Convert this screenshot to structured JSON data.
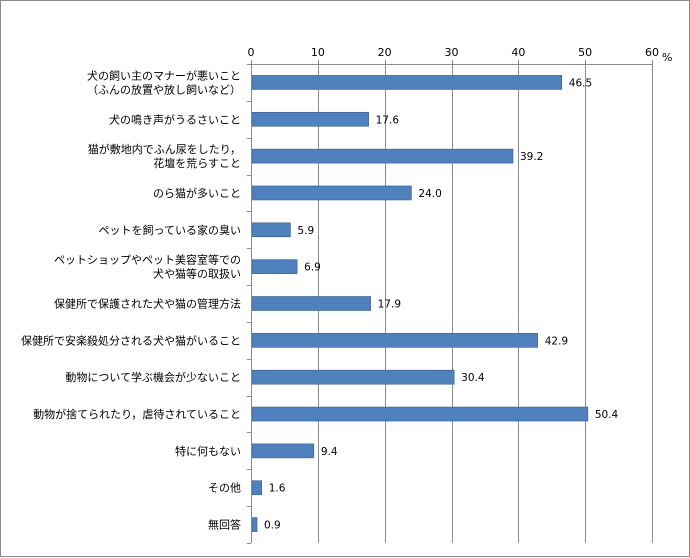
{
  "chart_data": {
    "type": "bar",
    "orientation": "horizontal",
    "categories": [
      [
        "犬の飼い主のマナーが悪いこと",
        "（ふんの放置や放し飼いなど）"
      ],
      [
        "犬の鳴き声がうるさいこと"
      ],
      [
        "猫が敷地内でふん尿をしたり，",
        "花壇を荒らすこと"
      ],
      [
        "のら猫が多いこと"
      ],
      [
        "ペットを飼っている家の臭い"
      ],
      [
        "ペットショップやペット美容室等での",
        "犬や猫等の取扱い"
      ],
      [
        "保健所で保護された犬や猫の管理方法"
      ],
      [
        "保健所で安楽殺処分される犬や猫がいること"
      ],
      [
        "動物について学ぶ機会が少ないこと"
      ],
      [
        "動物が捨てられたり，虐待されていること"
      ],
      [
        "特に何もない"
      ],
      [
        "その他"
      ],
      [
        "無回答"
      ]
    ],
    "values": [
      46.5,
      17.6,
      39.2,
      24.0,
      5.9,
      6.9,
      17.9,
      42.9,
      30.4,
      50.4,
      9.4,
      1.6,
      0.9
    ],
    "value_labels": [
      "46.5",
      "17.6",
      "39.2",
      "24.0",
      "5.9",
      "6.9",
      "17.9",
      "42.9",
      "30.4",
      "50.4",
      "9.4",
      "1.6",
      "0.9"
    ],
    "xlim": [
      0,
      60
    ],
    "xticks": [
      0,
      10,
      20,
      30,
      40,
      50,
      60
    ],
    "unit": "%",
    "axis_position": "top",
    "grid": true,
    "bar_color": "#4f81bd",
    "bar_edge_color": "#385d8a",
    "grid_color": "#8c8c8c"
  }
}
